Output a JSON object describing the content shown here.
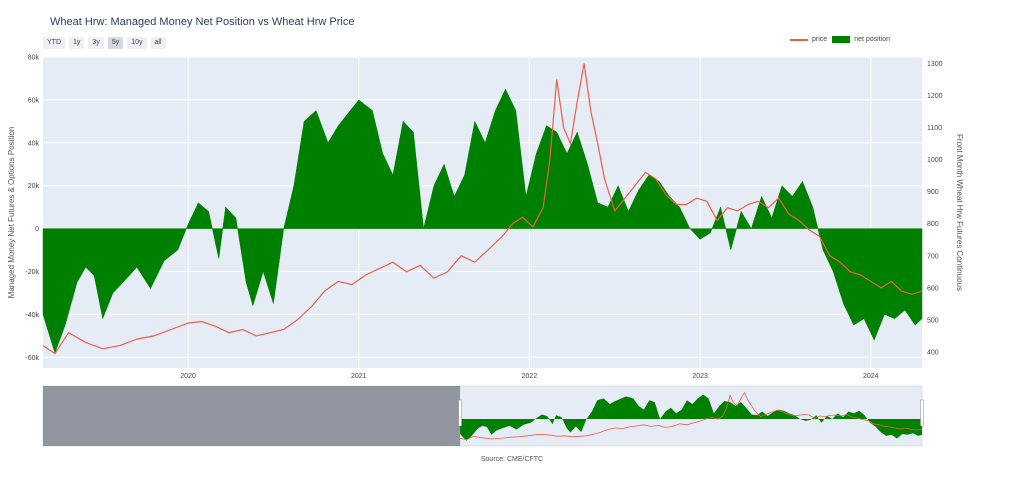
{
  "title": "Wheat Hrw: Managed Money Net Position vs Wheat Hrw Price",
  "range_buttons": [
    "YTD",
    "1y",
    "3y",
    "5y",
    "10y",
    "all"
  ],
  "active_range": "5y",
  "legend": {
    "price": "price",
    "net": "net position"
  },
  "source": "Source: CME/CFTC",
  "colors": {
    "price": "#e8604a",
    "net": "#008000",
    "plot_bg": "#e5ecf6",
    "grid": "#ffffff"
  },
  "chart_data": {
    "type": "area",
    "xlabel": "",
    "ylabel_left": "Managed Money Net Futures & Options Position",
    "ylabel_right": "Front Month Wheat Hrw Futures Continuous",
    "xlim": [
      2019.15,
      2024.3
    ],
    "ylim_left": [
      -65000,
      80000
    ],
    "ylim_right": [
      350,
      1320
    ],
    "yticks_left": [
      -60000,
      -40000,
      -20000,
      0,
      20000,
      40000,
      60000,
      80000
    ],
    "yticks_left_labels": [
      "-60k",
      "-40k",
      "-20k",
      "0",
      "20k",
      "40k",
      "60k",
      "80k"
    ],
    "yticks_right": [
      400,
      500,
      600,
      700,
      800,
      900,
      1000,
      1100,
      1200,
      1300
    ],
    "xticks": [
      2020,
      2021,
      2022,
      2023,
      2024
    ],
    "xtick_labels": [
      "2020",
      "2021",
      "2022",
      "2023",
      "2024"
    ],
    "grid": true,
    "legend_position": "top-right",
    "series": [
      {
        "name": "net position",
        "axis": "left",
        "x": [
          2019.15,
          2019.22,
          2019.28,
          2019.35,
          2019.4,
          2019.45,
          2019.5,
          2019.56,
          2019.62,
          2019.7,
          2019.78,
          2019.86,
          2019.94,
          2020.0,
          2020.06,
          2020.12,
          2020.18,
          2020.22,
          2020.28,
          2020.34,
          2020.38,
          2020.44,
          2020.5,
          2020.56,
          2020.62,
          2020.68,
          2020.75,
          2020.82,
          2020.88,
          2020.95,
          2021.0,
          2021.08,
          2021.14,
          2021.2,
          2021.26,
          2021.32,
          2021.38,
          2021.44,
          2021.5,
          2021.56,
          2021.62,
          2021.68,
          2021.74,
          2021.8,
          2021.86,
          2021.92,
          2021.98,
          2022.04,
          2022.1,
          2022.16,
          2022.22,
          2022.28,
          2022.34,
          2022.4,
          2022.46,
          2022.52,
          2022.58,
          2022.64,
          2022.7,
          2022.76,
          2022.82,
          2022.88,
          2022.94,
          2023.0,
          2023.06,
          2023.12,
          2023.18,
          2023.24,
          2023.3,
          2023.36,
          2023.42,
          2023.48,
          2023.54,
          2023.6,
          2023.66,
          2023.72,
          2023.78,
          2023.84,
          2023.9,
          2023.96,
          2024.02,
          2024.08,
          2024.14,
          2024.2,
          2024.26,
          2024.3
        ],
        "values": [
          -40000,
          -58000,
          -45000,
          -25000,
          -18000,
          -22000,
          -42000,
          -30000,
          -25000,
          -18000,
          -28000,
          -15000,
          -10000,
          2000,
          12000,
          8000,
          -14000,
          10000,
          5000,
          -25000,
          -36000,
          -20000,
          -35000,
          0,
          20000,
          50000,
          55000,
          40000,
          48000,
          55000,
          60000,
          55000,
          35000,
          25000,
          50000,
          45000,
          0,
          20000,
          30000,
          15000,
          25000,
          50000,
          40000,
          55000,
          65000,
          55000,
          15000,
          35000,
          48000,
          45000,
          35000,
          45000,
          30000,
          12000,
          10000,
          20000,
          8000,
          18000,
          25000,
          22000,
          15000,
          10000,
          0,
          -5000,
          -2000,
          10000,
          -10000,
          8000,
          0,
          15000,
          5000,
          20000,
          15000,
          22000,
          10000,
          -10000,
          -20000,
          -35000,
          -45000,
          -42000,
          -52000,
          -40000,
          -42000,
          -38000,
          -45000,
          -42000
        ],
        "color": "#008000"
      },
      {
        "name": "price",
        "axis": "right",
        "x": [
          2019.15,
          2019.22,
          2019.3,
          2019.4,
          2019.5,
          2019.6,
          2019.7,
          2019.8,
          2019.9,
          2020.0,
          2020.08,
          2020.16,
          2020.24,
          2020.32,
          2020.4,
          2020.48,
          2020.56,
          2020.64,
          2020.72,
          2020.8,
          2020.88,
          2020.96,
          2021.04,
          2021.12,
          2021.2,
          2021.28,
          2021.36,
          2021.44,
          2021.52,
          2021.6,
          2021.68,
          2021.76,
          2021.84,
          2021.9,
          2021.96,
          2022.02,
          2022.08,
          2022.12,
          2022.16,
          2022.2,
          2022.24,
          2022.28,
          2022.32,
          2022.36,
          2022.4,
          2022.44,
          2022.5,
          2022.56,
          2022.62,
          2022.68,
          2022.74,
          2022.8,
          2022.86,
          2022.92,
          2022.98,
          2023.04,
          2023.1,
          2023.16,
          2023.22,
          2023.28,
          2023.34,
          2023.4,
          2023.46,
          2023.52,
          2023.58,
          2023.64,
          2023.7,
          2023.76,
          2023.82,
          2023.88,
          2023.94,
          2024.0,
          2024.06,
          2024.12,
          2024.18,
          2024.24,
          2024.3
        ],
        "values": [
          420,
          395,
          460,
          430,
          410,
          420,
          440,
          450,
          470,
          490,
          495,
          480,
          460,
          470,
          450,
          460,
          470,
          500,
          540,
          590,
          620,
          610,
          640,
          660,
          680,
          650,
          670,
          630,
          650,
          700,
          680,
          720,
          760,
          800,
          820,
          790,
          850,
          1000,
          1250,
          1100,
          1050,
          1180,
          1300,
          1150,
          1050,
          940,
          840,
          880,
          920,
          960,
          940,
          890,
          860,
          860,
          880,
          870,
          810,
          850,
          840,
          860,
          870,
          850,
          880,
          830,
          810,
          780,
          760,
          700,
          680,
          650,
          640,
          620,
          600,
          620,
          590,
          580,
          590
        ],
        "color": "#e8604a"
      }
    ]
  }
}
